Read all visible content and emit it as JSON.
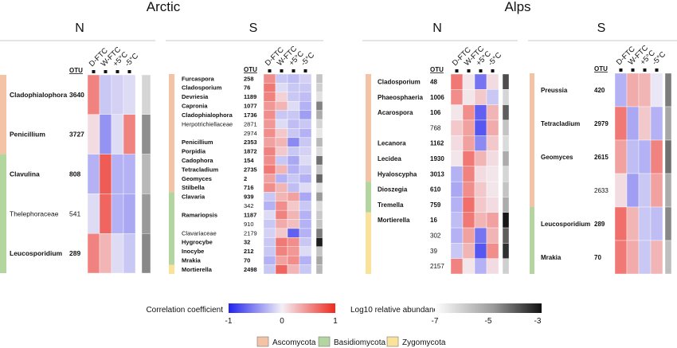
{
  "chart_data": {
    "type": "heatmap",
    "regions": [
      {
        "title": "Arctic",
        "panels": [
          {
            "title": "N",
            "otu_header": "OTU",
            "columns": [
              "D-FTC",
              "W-FTC",
              "+5°C",
              "-5°C"
            ],
            "rows": [
              {
                "taxon": "Cladophialophora",
                "otu": "3640",
                "phylum": "Ascomycota",
                "named": true,
                "corr": [
                  0.55,
                  -0.2,
                  -0.15,
                  -0.1
                ],
                "abund": -6.3
              },
              {
                "taxon": "Penicillium",
                "otu": "3727",
                "phylum": "Ascomycota",
                "named": true,
                "corr": [
                  0.1,
                  -0.45,
                  -0.1,
                  0.55
                ],
                "abund": -5.1
              },
              {
                "taxon": "Clavulina",
                "otu": "808",
                "phylum": "Basidiomycota",
                "named": true,
                "corr": [
                  -0.3,
                  0.75,
                  -0.3,
                  -0.3
                ],
                "abund": -5.8
              },
              {
                "taxon": "Thelephoraceae",
                "otu": "541",
                "phylum": "Basidiomycota",
                "named": false,
                "corr": [
                  -0.1,
                  0.7,
                  -0.3,
                  -0.35
                ],
                "abund": -5.3
              },
              {
                "taxon": "Leucosporidium",
                "otu": "289",
                "phylum": "Basidiomycota",
                "named": true,
                "corr": [
                  0.55,
                  0.3,
                  -0.1,
                  -0.2
                ],
                "abund": -5.0
              }
            ]
          },
          {
            "title": "S",
            "otu_header": "OTU",
            "columns": [
              "D-FTC",
              "W-FTC",
              "+5°C",
              "-5°C"
            ],
            "rows": [
              {
                "taxon": "Furcaspora",
                "otu": "258",
                "phylum": "Ascomycota",
                "named": true,
                "corr": [
                  0.5,
                  -0.2,
                  -0.25,
                  -0.15
                ],
                "abund": -6.0
              },
              {
                "taxon": "Cladosporium",
                "otu": "76",
                "phylum": "Ascomycota",
                "named": true,
                "corr": [
                  0.6,
                  -0.1,
                  -0.2,
                  -0.2
                ],
                "abund": -6.2
              },
              {
                "taxon": "Devriesia",
                "otu": "1189",
                "phylum": "Ascomycota",
                "named": true,
                "corr": [
                  0.55,
                  0.15,
                  -0.2,
                  -0.25
                ],
                "abund": -6.5
              },
              {
                "taxon": "Capronia",
                "otu": "1077",
                "phylum": "Ascomycota",
                "named": true,
                "corr": [
                  0.45,
                  0.3,
                  -0.1,
                  -0.3
                ],
                "abund": -4.9
              },
              {
                "taxon": "Cladophialophora",
                "otu": "1736",
                "phylum": "Ascomycota",
                "named": true,
                "corr": [
                  0.5,
                  -0.2,
                  -0.2,
                  -0.4
                ],
                "abund": -5.6
              },
              {
                "taxon": "Herpotrichiellaceae",
                "otu": "2871",
                "phylum": "Ascomycota",
                "named": false,
                "corr": [
                  0.45,
                  -0.1,
                  -0.25,
                  -0.2
                ],
                "abund": -6.3
              },
              {
                "taxon": "",
                "otu": "2974",
                "phylum": "Ascomycota",
                "named": false,
                "corr": [
                  0.5,
                  0.2,
                  -0.2,
                  -0.3
                ],
                "abund": -6.6
              },
              {
                "taxon": "Penicillium",
                "otu": "2353",
                "phylum": "Ascomycota",
                "named": true,
                "corr": [
                  0.4,
                  0.3,
                  -0.5,
                  -0.2
                ],
                "abund": -5.8
              },
              {
                "taxon": "Porpidia",
                "otu": "1872",
                "phylum": "Ascomycota",
                "named": true,
                "corr": [
                  0.55,
                  0.2,
                  -0.2,
                  -0.15
                ],
                "abund": -6.4
              },
              {
                "taxon": "Cadophora",
                "otu": "154",
                "phylum": "Ascomycota",
                "named": true,
                "corr": [
                  0.5,
                  -0.2,
                  -0.35,
                  -0.1
                ],
                "abund": -4.6
              },
              {
                "taxon": "Tetracladium",
                "otu": "2735",
                "phylum": "Ascomycota",
                "named": true,
                "corr": [
                  0.6,
                  0.3,
                  -0.3,
                  -0.2
                ],
                "abund": -6.0
              },
              {
                "taxon": "Geomyces",
                "otu": "2",
                "phylum": "Ascomycota",
                "named": true,
                "corr": [
                  0.4,
                  -0.3,
                  -0.2,
                  -0.3
                ],
                "abund": -4.4
              },
              {
                "taxon": "Stilbella",
                "otu": "716",
                "phylum": "Ascomycota",
                "named": true,
                "corr": [
                  0.5,
                  0.3,
                  -0.25,
                  -0.1
                ],
                "abund": -6.5
              },
              {
                "taxon": "Clavaria",
                "otu": "939",
                "phylum": "Basidiomycota",
                "named": true,
                "corr": [
                  -0.2,
                  0.3,
                  0.4,
                  -0.35
                ],
                "abund": -5.3
              },
              {
                "taxon": "",
                "otu": "342",
                "phylum": "Basidiomycota",
                "named": false,
                "corr": [
                  -0.3,
                  0.5,
                  0.2,
                  -0.2
                ],
                "abund": -6.4
              },
              {
                "taxon": "Ramariopsis",
                "otu": "1187",
                "phylum": "Basidiomycota",
                "named": true,
                "corr": [
                  -0.1,
                  0.55,
                  0.3,
                  -0.3
                ],
                "abund": -6.1
              },
              {
                "taxon": "",
                "otu": "910",
                "phylum": "Basidiomycota",
                "named": false,
                "corr": [
                  -0.2,
                  0.35,
                  0.25,
                  -0.3
                ],
                "abund": -6.0
              },
              {
                "taxon": "Clavariaceae",
                "otu": "2179",
                "phylum": "Basidiomycota",
                "named": false,
                "corr": [
                  -0.15,
                  0.2,
                  -0.7,
                  -0.3
                ],
                "abund": -4.8
              },
              {
                "taxon": "Hygrocybe",
                "otu": "32",
                "phylum": "Basidiomycota",
                "named": true,
                "corr": [
                  -0.2,
                  0.6,
                  0.5,
                  -0.2
                ],
                "abund": -3.2
              },
              {
                "taxon": "Inocybe",
                "otu": "212",
                "phylum": "Basidiomycota",
                "named": true,
                "corr": [
                  -0.2,
                  0.55,
                  0.45,
                  -0.1
                ],
                "abund": -6.0
              },
              {
                "taxon": "Mrakia",
                "otu": "70",
                "phylum": "Basidiomycota",
                "named": true,
                "corr": [
                  -0.3,
                  0.4,
                  0.5,
                  -0.3
                ],
                "abund": -5.5
              },
              {
                "taxon": "Mortierella",
                "otu": "2498",
                "phylum": "Zygomycota",
                "named": true,
                "corr": [
                  -0.2,
                  0.7,
                  0.3,
                  -0.2
                ],
                "abund": -5.8
              }
            ]
          }
        ]
      },
      {
        "title": "Alps",
        "panels": [
          {
            "title": "N",
            "otu_header": "OTU",
            "columns": [
              "D-FTC",
              "W-FTC",
              "+5°C",
              "-5°C"
            ],
            "rows": [
              {
                "taxon": "Cladosporium",
                "otu": "48",
                "phylum": "Ascomycota",
                "named": true,
                "corr": [
                  0.6,
                  0.05,
                  -0.6,
                  0.1
                ],
                "abund": -4.0
              },
              {
                "taxon": "Phaeosphaeria",
                "otu": "1006",
                "phylum": "Ascomycota",
                "named": true,
                "corr": [
                  0.5,
                  0.05,
                  0.2,
                  -0.2
                ],
                "abund": -6.3
              },
              {
                "taxon": "Acarospora",
                "otu": "106",
                "phylum": "Ascomycota",
                "named": true,
                "corr": [
                  0.05,
                  0.5,
                  -0.7,
                  0.3
                ],
                "abund": -4.3
              },
              {
                "taxon": "",
                "otu": "768",
                "phylum": "Ascomycota",
                "named": false,
                "corr": [
                  0.2,
                  0.4,
                  -0.75,
                  0.35
                ],
                "abund": -6.0
              },
              {
                "taxon": "Lecanora",
                "otu": "1162",
                "phylum": "Ascomycota",
                "named": true,
                "corr": [
                  0.1,
                  0.4,
                  -0.5,
                  0.2
                ],
                "abund": -6.4
              },
              {
                "taxon": "Lecidea",
                "otu": "1930",
                "phylum": "Ascomycota",
                "named": true,
                "corr": [
                  0.05,
                  0.6,
                  0.3,
                  0.1
                ],
                "abund": -5.6
              },
              {
                "taxon": "Hyaloscypha",
                "otu": "3013",
                "phylum": "Ascomycota",
                "named": true,
                "corr": [
                  -0.3,
                  0.55,
                  0.1,
                  0.05
                ],
                "abund": -6.3
              },
              {
                "taxon": "Dioszegia",
                "otu": "610",
                "phylum": "Basidiomycota",
                "named": true,
                "corr": [
                  -0.35,
                  0.5,
                  0.2,
                  0.05
                ],
                "abund": -6.0
              },
              {
                "taxon": "Tremella",
                "otu": "759",
                "phylum": "Basidiomycota",
                "named": true,
                "corr": [
                  -0.3,
                  0.65,
                  0.2,
                  0.1
                ],
                "abund": -5.6
              },
              {
                "taxon": "Mortierella",
                "otu": "16",
                "phylum": "Zygomycota",
                "named": true,
                "corr": [
                  -0.25,
                  0.6,
                  0.3,
                  0.4
                ],
                "abund": -3.1
              },
              {
                "taxon": "",
                "otu": "302",
                "phylum": "Zygomycota",
                "named": false,
                "corr": [
                  -0.3,
                  0.4,
                  -0.6,
                  0.3
                ],
                "abund": -4.3
              },
              {
                "taxon": "",
                "otu": "39",
                "phylum": "Zygomycota",
                "named": false,
                "corr": [
                  -0.2,
                  0.3,
                  -0.75,
                  0.5
                ],
                "abund": -3.5
              },
              {
                "taxon": "",
                "otu": "2157",
                "phylum": "Zygomycota",
                "named": false,
                "corr": [
                  0.55,
                  0.05,
                  -0.3,
                  0.1
                ],
                "abund": -6.2
              }
            ]
          },
          {
            "title": "S",
            "otu_header": "OTU",
            "columns": [
              "D-FTC",
              "W-FTC",
              "+5°C",
              "-5°C"
            ],
            "rows": [
              {
                "taxon": "Preussia",
                "otu": "420",
                "phylum": "Ascomycota",
                "named": true,
                "corr": [
                  -0.3,
                  0.35,
                  0.3,
                  -0.05
                ],
                "abund": -4.8
              },
              {
                "taxon": "Tetracladium",
                "otu": "2979",
                "phylum": "Ascomycota",
                "named": true,
                "corr": [
                  0.6,
                  -0.35,
                  0.2,
                  -0.3
                ],
                "abund": -5.5
              },
              {
                "taxon": "Geomyces",
                "otu": "2615",
                "phylum": "Ascomycota",
                "named": true,
                "corr": [
                  0.4,
                  -0.25,
                  -0.3,
                  0.55
                ],
                "abund": -4.6
              },
              {
                "taxon": "",
                "otu": "2633",
                "phylum": "Ascomycota",
                "named": false,
                "corr": [
                  0.1,
                  -0.4,
                  -0.2,
                  0.4
                ],
                "abund": -5.6
              },
              {
                "taxon": "Leucosporidium",
                "otu": "289",
                "phylum": "Basidiomycota",
                "named": true,
                "corr": [
                  0.65,
                  0.3,
                  -0.2,
                  -0.25
                ],
                "abund": -5.0
              },
              {
                "taxon": "Mrakia",
                "otu": "70",
                "phylum": "Basidiomycota",
                "named": true,
                "corr": [
                  0.6,
                  0.35,
                  -0.2,
                  0.3
                ],
                "abund": -5.9
              }
            ]
          }
        ]
      }
    ],
    "legend": {
      "correlation_title": "Correlation coefficient",
      "correlation_ticks": [
        "-1",
        "0",
        "1"
      ],
      "correlation_range": [
        -1,
        1
      ],
      "abundance_title": "Log10 relative abundance",
      "abundance_ticks": [
        "-7",
        "-5",
        "-3"
      ],
      "abundance_range": [
        -7,
        -3
      ],
      "phyla": [
        {
          "name": "Ascomycota",
          "color": "#f4c2a4"
        },
        {
          "name": "Basidiomycota",
          "color": "#b3d6a1"
        },
        {
          "name": "Zygomycota",
          "color": "#fae29a"
        }
      ]
    },
    "colors": {
      "negative": "#2222ee",
      "neutral": "#f3f0f6",
      "positive": "#ee2a1f"
    }
  }
}
